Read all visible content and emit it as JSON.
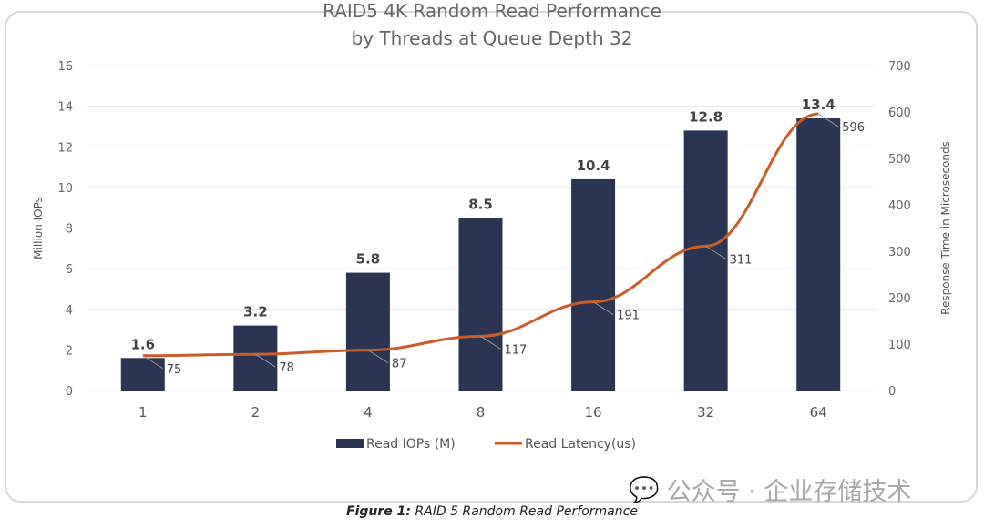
{
  "chart_data": {
    "type": "bar+line",
    "title": "RAID5 4K Random Read Performance",
    "subtitle": "by Threads at Queue Depth 32",
    "categories": [
      "1",
      "2",
      "4",
      "8",
      "16",
      "32",
      "64"
    ],
    "series": [
      {
        "name": "Read IOPs (M)",
        "type": "bar",
        "axis": "left",
        "color": "#2b3553",
        "values": [
          1.6,
          3.2,
          5.8,
          8.5,
          10.4,
          12.8,
          13.4
        ]
      },
      {
        "name": "Read Latency(us)",
        "type": "line",
        "axis": "right",
        "color": "#cc5c27",
        "values": [
          75,
          78,
          87,
          117,
          191,
          311,
          596
        ]
      }
    ],
    "ylabel": "Million IOPs",
    "y2label": "Response Time in Microseconds",
    "ylim": [
      0,
      16
    ],
    "yticks": [
      0,
      2,
      4,
      6,
      8,
      10,
      12,
      14,
      16
    ],
    "y2lim": [
      0,
      700
    ],
    "y2ticks": [
      0,
      100,
      200,
      300,
      400,
      500,
      600,
      700
    ],
    "grid": true,
    "legend": "bottom"
  },
  "caption": {
    "label": "Figure 1:",
    "text": " RAID 5 Random Read Performance"
  },
  "watermark": "公众号 · 企业存储技术"
}
